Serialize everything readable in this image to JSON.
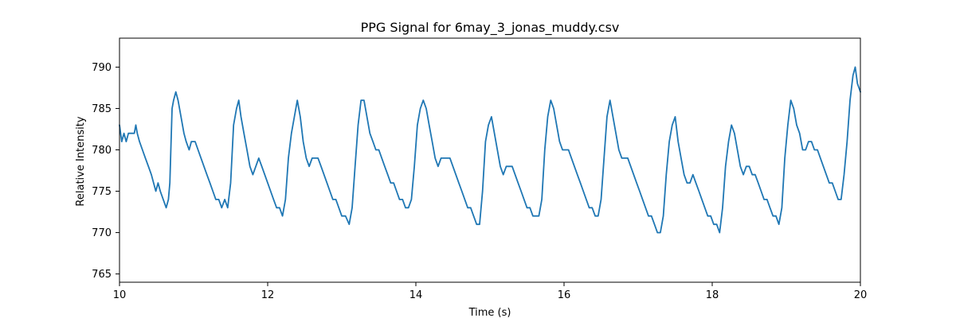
{
  "chart_data": {
    "type": "line",
    "title": "PPG Signal for 6may_3_jonas_muddy.csv",
    "xlabel": "Time (s)",
    "ylabel": "Relative Intensity",
    "xlim": [
      10,
      20
    ],
    "ylim": [
      764,
      793.5
    ],
    "xticks": [
      10,
      12,
      14,
      16,
      18,
      20
    ],
    "yticks": [
      765,
      770,
      775,
      780,
      785,
      790
    ],
    "grid": false,
    "colors": {
      "line": "#1f77b4",
      "axes": "#000000",
      "background": "#ffffff"
    },
    "series": [
      {
        "values": [
          [
            10.0,
            783
          ],
          [
            10.03,
            781
          ],
          [
            10.06,
            782
          ],
          [
            10.09,
            781
          ],
          [
            10.12,
            782
          ],
          [
            10.16,
            782
          ],
          [
            10.2,
            782
          ],
          [
            10.22,
            783
          ],
          [
            10.24,
            782
          ],
          [
            10.27,
            781
          ],
          [
            10.31,
            780
          ],
          [
            10.35,
            779
          ],
          [
            10.39,
            778
          ],
          [
            10.43,
            777
          ],
          [
            10.46,
            776
          ],
          [
            10.49,
            775
          ],
          [
            10.52,
            776
          ],
          [
            10.55,
            775
          ],
          [
            10.59,
            774
          ],
          [
            10.63,
            773
          ],
          [
            10.66,
            774
          ],
          [
            10.68,
            776
          ],
          [
            10.71,
            785
          ],
          [
            10.73,
            786
          ],
          [
            10.76,
            787
          ],
          [
            10.79,
            786
          ],
          [
            10.83,
            784
          ],
          [
            10.87,
            782
          ],
          [
            10.9,
            781
          ],
          [
            10.94,
            780
          ],
          [
            10.97,
            781
          ],
          [
            11.02,
            781
          ],
          [
            11.06,
            780
          ],
          [
            11.1,
            779
          ],
          [
            11.14,
            778
          ],
          [
            11.18,
            777
          ],
          [
            11.22,
            776
          ],
          [
            11.26,
            775
          ],
          [
            11.3,
            774
          ],
          [
            11.34,
            774
          ],
          [
            11.38,
            773
          ],
          [
            11.42,
            774
          ],
          [
            11.46,
            773
          ],
          [
            11.5,
            776
          ],
          [
            11.54,
            783
          ],
          [
            11.58,
            785
          ],
          [
            11.61,
            786
          ],
          [
            11.64,
            784
          ],
          [
            11.68,
            782
          ],
          [
            11.72,
            780
          ],
          [
            11.76,
            778
          ],
          [
            11.8,
            777
          ],
          [
            11.84,
            778
          ],
          [
            11.88,
            779
          ],
          [
            11.92,
            778
          ],
          [
            11.96,
            777
          ],
          [
            12.0,
            776
          ],
          [
            12.04,
            775
          ],
          [
            12.08,
            774
          ],
          [
            12.12,
            773
          ],
          [
            12.16,
            773
          ],
          [
            12.2,
            772
          ],
          [
            12.24,
            774
          ],
          [
            12.28,
            779
          ],
          [
            12.32,
            782
          ],
          [
            12.36,
            784
          ],
          [
            12.4,
            786
          ],
          [
            12.44,
            784
          ],
          [
            12.48,
            781
          ],
          [
            12.52,
            779
          ],
          [
            12.56,
            778
          ],
          [
            12.6,
            779
          ],
          [
            12.64,
            779
          ],
          [
            12.68,
            779
          ],
          [
            12.72,
            778
          ],
          [
            12.76,
            777
          ],
          [
            12.8,
            776
          ],
          [
            12.84,
            775
          ],
          [
            12.88,
            774
          ],
          [
            12.92,
            774
          ],
          [
            12.96,
            773
          ],
          [
            13.0,
            772
          ],
          [
            13.05,
            772
          ],
          [
            13.1,
            771
          ],
          [
            13.14,
            773
          ],
          [
            13.18,
            778
          ],
          [
            13.22,
            783
          ],
          [
            13.26,
            786
          ],
          [
            13.3,
            786
          ],
          [
            13.34,
            784
          ],
          [
            13.38,
            782
          ],
          [
            13.42,
            781
          ],
          [
            13.46,
            780
          ],
          [
            13.5,
            780
          ],
          [
            13.54,
            779
          ],
          [
            13.58,
            778
          ],
          [
            13.62,
            777
          ],
          [
            13.66,
            776
          ],
          [
            13.7,
            776
          ],
          [
            13.74,
            775
          ],
          [
            13.78,
            774
          ],
          [
            13.82,
            774
          ],
          [
            13.86,
            773
          ],
          [
            13.9,
            773
          ],
          [
            13.94,
            774
          ],
          [
            13.98,
            778
          ],
          [
            14.02,
            783
          ],
          [
            14.06,
            785
          ],
          [
            14.1,
            786
          ],
          [
            14.14,
            785
          ],
          [
            14.18,
            783
          ],
          [
            14.22,
            781
          ],
          [
            14.26,
            779
          ],
          [
            14.3,
            778
          ],
          [
            14.34,
            779
          ],
          [
            14.38,
            779
          ],
          [
            14.42,
            779
          ],
          [
            14.46,
            779
          ],
          [
            14.5,
            778
          ],
          [
            14.54,
            777
          ],
          [
            14.58,
            776
          ],
          [
            14.62,
            775
          ],
          [
            14.66,
            774
          ],
          [
            14.7,
            773
          ],
          [
            14.74,
            773
          ],
          [
            14.78,
            772
          ],
          [
            14.82,
            771
          ],
          [
            14.86,
            771
          ],
          [
            14.9,
            775
          ],
          [
            14.94,
            781
          ],
          [
            14.98,
            783
          ],
          [
            15.02,
            784
          ],
          [
            15.06,
            782
          ],
          [
            15.1,
            780
          ],
          [
            15.14,
            778
          ],
          [
            15.18,
            777
          ],
          [
            15.22,
            778
          ],
          [
            15.26,
            778
          ],
          [
            15.3,
            778
          ],
          [
            15.34,
            777
          ],
          [
            15.38,
            776
          ],
          [
            15.42,
            775
          ],
          [
            15.46,
            774
          ],
          [
            15.5,
            773
          ],
          [
            15.54,
            773
          ],
          [
            15.58,
            772
          ],
          [
            15.62,
            772
          ],
          [
            15.66,
            772
          ],
          [
            15.7,
            774
          ],
          [
            15.74,
            780
          ],
          [
            15.78,
            784
          ],
          [
            15.82,
            786
          ],
          [
            15.86,
            785
          ],
          [
            15.9,
            783
          ],
          [
            15.94,
            781
          ],
          [
            15.98,
            780
          ],
          [
            16.02,
            780
          ],
          [
            16.06,
            780
          ],
          [
            16.1,
            779
          ],
          [
            16.14,
            778
          ],
          [
            16.18,
            777
          ],
          [
            16.22,
            776
          ],
          [
            16.26,
            775
          ],
          [
            16.3,
            774
          ],
          [
            16.34,
            773
          ],
          [
            16.38,
            773
          ],
          [
            16.42,
            772
          ],
          [
            16.46,
            772
          ],
          [
            16.5,
            774
          ],
          [
            16.54,
            779
          ],
          [
            16.58,
            784
          ],
          [
            16.62,
            786
          ],
          [
            16.66,
            784
          ],
          [
            16.7,
            782
          ],
          [
            16.74,
            780
          ],
          [
            16.78,
            779
          ],
          [
            16.82,
            779
          ],
          [
            16.86,
            779
          ],
          [
            16.9,
            778
          ],
          [
            16.94,
            777
          ],
          [
            16.98,
            776
          ],
          [
            17.02,
            775
          ],
          [
            17.06,
            774
          ],
          [
            17.1,
            773
          ],
          [
            17.14,
            772
          ],
          [
            17.18,
            772
          ],
          [
            17.22,
            771
          ],
          [
            17.26,
            770
          ],
          [
            17.3,
            770
          ],
          [
            17.34,
            772
          ],
          [
            17.38,
            777
          ],
          [
            17.42,
            781
          ],
          [
            17.46,
            783
          ],
          [
            17.5,
            784
          ],
          [
            17.54,
            781
          ],
          [
            17.58,
            779
          ],
          [
            17.62,
            777
          ],
          [
            17.66,
            776
          ],
          [
            17.7,
            776
          ],
          [
            17.74,
            777
          ],
          [
            17.78,
            776
          ],
          [
            17.82,
            775
          ],
          [
            17.86,
            774
          ],
          [
            17.9,
            773
          ],
          [
            17.94,
            772
          ],
          [
            17.98,
            772
          ],
          [
            18.02,
            771
          ],
          [
            18.06,
            771
          ],
          [
            18.1,
            770
          ],
          [
            18.14,
            773
          ],
          [
            18.18,
            778
          ],
          [
            18.22,
            781
          ],
          [
            18.26,
            783
          ],
          [
            18.3,
            782
          ],
          [
            18.34,
            780
          ],
          [
            18.38,
            778
          ],
          [
            18.42,
            777
          ],
          [
            18.46,
            778
          ],
          [
            18.5,
            778
          ],
          [
            18.54,
            777
          ],
          [
            18.58,
            777
          ],
          [
            18.62,
            776
          ],
          [
            18.66,
            775
          ],
          [
            18.7,
            774
          ],
          [
            18.74,
            774
          ],
          [
            18.78,
            773
          ],
          [
            18.82,
            772
          ],
          [
            18.86,
            772
          ],
          [
            18.9,
            771
          ],
          [
            18.94,
            773
          ],
          [
            18.98,
            779
          ],
          [
            19.02,
            783
          ],
          [
            19.06,
            786
          ],
          [
            19.1,
            785
          ],
          [
            19.14,
            783
          ],
          [
            19.18,
            782
          ],
          [
            19.22,
            780
          ],
          [
            19.26,
            780
          ],
          [
            19.3,
            781
          ],
          [
            19.34,
            781
          ],
          [
            19.38,
            780
          ],
          [
            19.42,
            780
          ],
          [
            19.46,
            779
          ],
          [
            19.5,
            778
          ],
          [
            19.54,
            777
          ],
          [
            19.58,
            776
          ],
          [
            19.62,
            776
          ],
          [
            19.66,
            775
          ],
          [
            19.7,
            774
          ],
          [
            19.74,
            774
          ],
          [
            19.78,
            777
          ],
          [
            19.82,
            781
          ],
          [
            19.86,
            786
          ],
          [
            19.9,
            789
          ],
          [
            19.93,
            790
          ],
          [
            19.96,
            788
          ],
          [
            20.0,
            787
          ]
        ]
      }
    ]
  }
}
